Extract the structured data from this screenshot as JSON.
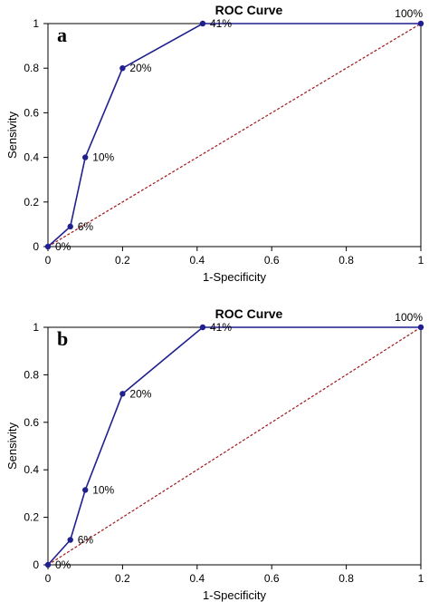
{
  "chart_data": [
    {
      "type": "line",
      "panel_label": "a",
      "title": "ROC Curve",
      "xlabel": "1-Specificity",
      "ylabel": "Sensivity",
      "xlim": [
        0,
        1
      ],
      "ylim": [
        0,
        1
      ],
      "xticks": [
        "0",
        "0.2",
        "0.4",
        "0.6",
        "0.8",
        "1"
      ],
      "yticks": [
        "0",
        "0.2",
        "0.4",
        "0.6",
        "0.8",
        "1"
      ],
      "grid": false,
      "series": [
        {
          "x": [
            0,
            0.06,
            0.1,
            0.2,
            0.415,
            1
          ],
          "y": [
            0,
            0.09,
            0.4,
            0.8,
            1,
            1
          ],
          "labels": [
            "0%",
            "6%",
            "10%",
            "20%",
            "41%",
            "100%"
          ],
          "color": "#1f1f8f"
        }
      ],
      "reference_line": {
        "x": [
          0,
          1
        ],
        "y": [
          0,
          1
        ],
        "color": "#a0161b"
      }
    },
    {
      "type": "line",
      "panel_label": "b",
      "title": "ROC Curve",
      "xlabel": "1-Specificity",
      "ylabel": "Sensivity",
      "xlim": [
        0,
        1
      ],
      "ylim": [
        0,
        1
      ],
      "xticks": [
        "0",
        "0.2",
        "0.4",
        "0.6",
        "0.8",
        "1"
      ],
      "yticks": [
        "0",
        "0.2",
        "0.4",
        "0.6",
        "0.8",
        "1"
      ],
      "grid": false,
      "series": [
        {
          "x": [
            0,
            0.06,
            0.1,
            0.2,
            0.415,
            1
          ],
          "y": [
            0,
            0.105,
            0.315,
            0.72,
            1,
            1
          ],
          "labels": [
            "0%",
            "6%",
            "10%",
            "20%",
            "41%",
            "100%"
          ],
          "color": "#1f1f8f"
        }
      ],
      "reference_line": {
        "x": [
          0,
          1
        ],
        "y": [
          0,
          1
        ],
        "color": "#a0161b"
      }
    }
  ]
}
